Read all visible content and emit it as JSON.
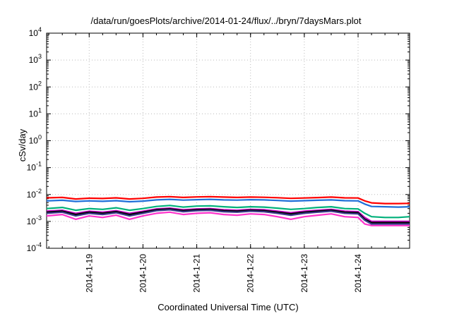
{
  "chart_data": {
    "type": "line",
    "title": "/data/run/goesPlots/archive/2014-01-24/flux/../bryn/7daysMars.plot",
    "xlabel": "Coordinated Universal Time (UTC)",
    "ylabel": "cSv/day",
    "yscale": "log",
    "ylim": [
      0.0001,
      10000
    ],
    "yticks": [
      {
        "base": "10",
        "exp": "4"
      },
      {
        "base": "10",
        "exp": "3"
      },
      {
        "base": "10",
        "exp": "2"
      },
      {
        "base": "10",
        "exp": "1"
      },
      {
        "base": "10",
        "exp": "0"
      },
      {
        "base": "10",
        "exp": "-1"
      },
      {
        "base": "10",
        "exp": "-2"
      },
      {
        "base": "10",
        "exp": "-3"
      },
      {
        "base": "10",
        "exp": "-4"
      }
    ],
    "xlim": [
      "2014-01-18 05:00",
      "2014-01-24 23:00"
    ],
    "xticks": [
      "2014-1-19",
      "2014-1-20",
      "2014-1-21",
      "2014-1-22",
      "2014-1-23",
      "2014-1-24"
    ],
    "grid": true,
    "x": [
      "2014-01-18 05:00",
      "2014-01-18 12:00",
      "2014-01-18 18:00",
      "2014-01-19 00:00",
      "2014-01-19 06:00",
      "2014-01-19 12:00",
      "2014-01-19 18:00",
      "2014-01-20 00:00",
      "2014-01-20 06:00",
      "2014-01-20 12:00",
      "2014-01-20 18:00",
      "2014-01-21 00:00",
      "2014-01-21 06:00",
      "2014-01-21 12:00",
      "2014-01-21 18:00",
      "2014-01-22 00:00",
      "2014-01-22 06:00",
      "2014-01-22 12:00",
      "2014-01-22 18:00",
      "2014-01-23 00:00",
      "2014-01-23 06:00",
      "2014-01-23 12:00",
      "2014-01-23 18:00",
      "2014-01-24 00:00",
      "2014-01-24 03:00",
      "2014-01-24 06:00",
      "2014-01-24 12:00",
      "2014-01-24 18:00",
      "2014-01-24 23:00"
    ],
    "series": [
      {
        "color": "#ff0000",
        "values": [
          0.0075,
          0.0078,
          0.0068,
          0.0073,
          0.0071,
          0.0075,
          0.0068,
          0.0072,
          0.008,
          0.0083,
          0.0078,
          0.0081,
          0.0083,
          0.008,
          0.0078,
          0.008,
          0.0079,
          0.0076,
          0.0072,
          0.0074,
          0.0077,
          0.008,
          0.0075,
          0.0074,
          0.0058,
          0.0049,
          0.0046,
          0.0046,
          0.0047
        ]
      },
      {
        "color": "#1f6fd8",
        "values": [
          0.0058,
          0.0061,
          0.0055,
          0.0058,
          0.0056,
          0.0059,
          0.0054,
          0.0057,
          0.0063,
          0.0066,
          0.0062,
          0.0064,
          0.0066,
          0.0063,
          0.0062,
          0.0064,
          0.0063,
          0.006,
          0.0057,
          0.0059,
          0.0061,
          0.0063,
          0.0059,
          0.0058,
          0.0044,
          0.0036,
          0.0035,
          0.0034,
          0.0035
        ]
      },
      {
        "color": "#00b07a",
        "values": [
          0.003,
          0.0033,
          0.0026,
          0.003,
          0.0028,
          0.0032,
          0.0026,
          0.003,
          0.0036,
          0.0039,
          0.0034,
          0.0037,
          0.0038,
          0.0035,
          0.0033,
          0.0035,
          0.0034,
          0.0031,
          0.0028,
          0.003,
          0.0033,
          0.0035,
          0.003,
          0.0029,
          0.002,
          0.0015,
          0.0014,
          0.0014,
          0.0015
        ]
      },
      {
        "color": "#c000c0",
        "values": [
          0.0024,
          0.0026,
          0.002,
          0.0024,
          0.0022,
          0.0025,
          0.002,
          0.0024,
          0.0029,
          0.0031,
          0.0027,
          0.0029,
          0.003,
          0.0027,
          0.0026,
          0.0028,
          0.0027,
          0.0024,
          0.0021,
          0.0024,
          0.0026,
          0.0028,
          0.0024,
          0.0023,
          0.0014,
          0.001,
          0.001,
          0.001,
          0.001
        ]
      },
      {
        "color": "#000000",
        "values": [
          0.0022,
          0.0024,
          0.0018,
          0.0022,
          0.002,
          0.0023,
          0.0018,
          0.0022,
          0.0027,
          0.0029,
          0.0025,
          0.0027,
          0.0028,
          0.0025,
          0.0024,
          0.0026,
          0.0025,
          0.0022,
          0.0019,
          0.0022,
          0.0024,
          0.0026,
          0.0022,
          0.0021,
          0.0012,
          0.0009,
          0.0009,
          0.0009,
          0.0009
        ]
      },
      {
        "color": "#3a3a8a",
        "values": [
          0.002,
          0.0022,
          0.0016,
          0.002,
          0.0018,
          0.0021,
          0.0016,
          0.002,
          0.0025,
          0.0027,
          0.0023,
          0.0025,
          0.0026,
          0.0023,
          0.0022,
          0.0024,
          0.0023,
          0.002,
          0.0017,
          0.002,
          0.0022,
          0.0024,
          0.002,
          0.0019,
          0.0011,
          0.0008,
          0.0008,
          0.0008,
          0.0008
        ]
      },
      {
        "color": "#ff33cc",
        "values": [
          0.0016,
          0.0018,
          0.0012,
          0.0016,
          0.0014,
          0.0017,
          0.0012,
          0.0016,
          0.002,
          0.0022,
          0.0018,
          0.002,
          0.0021,
          0.0018,
          0.0017,
          0.0019,
          0.0018,
          0.0015,
          0.0012,
          0.0015,
          0.0017,
          0.0019,
          0.0015,
          0.0014,
          0.0008,
          0.0007,
          0.0007,
          0.0007,
          0.0007
        ]
      }
    ]
  }
}
